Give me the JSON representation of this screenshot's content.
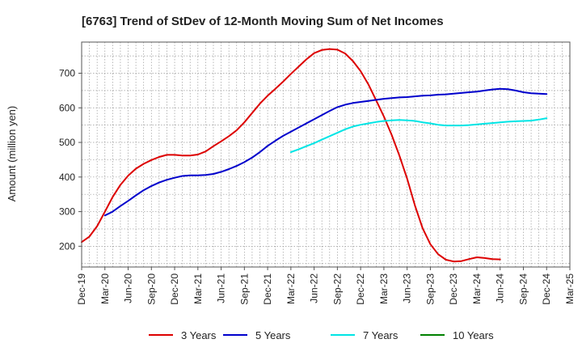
{
  "chart_data": {
    "type": "line",
    "title": "[6763]  Trend of StDev of 12-Month Moving Sum of Net Incomes",
    "ylabel": "Amount (million yen)",
    "xlabel": "",
    "ylim": [
      140,
      790
    ],
    "yticks": [
      200,
      300,
      400,
      500,
      600,
      700
    ],
    "x_tick_labels": [
      "Dec-19",
      "Mar-20",
      "Jun-20",
      "Sep-20",
      "Dec-20",
      "Mar-21",
      "Jun-21",
      "Sep-21",
      "Dec-21",
      "Mar-22",
      "Jun-22",
      "Sep-22",
      "Dec-22",
      "Mar-23",
      "Jun-23",
      "Sep-23",
      "Dec-23",
      "Mar-24",
      "Jun-24",
      "Sep-24",
      "Dec-24",
      "Mar-25"
    ],
    "grid": true,
    "legend_position": "bottom",
    "series": [
      {
        "name": "3 Years",
        "color": "#dd0000",
        "x": [
          "Dec-19",
          "Jan-20",
          "Feb-20",
          "Mar-20",
          "Apr-20",
          "May-20",
          "Jun-20",
          "Jul-20",
          "Aug-20",
          "Sep-20",
          "Oct-20",
          "Nov-20",
          "Dec-20",
          "Jan-21",
          "Feb-21",
          "Mar-21",
          "Apr-21",
          "May-21",
          "Jun-21",
          "Jul-21",
          "Aug-21",
          "Sep-21",
          "Oct-21",
          "Nov-21",
          "Dec-21",
          "Jan-22",
          "Feb-22",
          "Mar-22",
          "Apr-22",
          "May-22",
          "Jun-22",
          "Jul-22",
          "Aug-22",
          "Sep-22",
          "Oct-22",
          "Nov-22",
          "Dec-22",
          "Jan-23",
          "Feb-23",
          "Mar-23",
          "Apr-23",
          "May-23",
          "Jun-23",
          "Jul-23",
          "Aug-23",
          "Sep-23",
          "Oct-23",
          "Nov-23",
          "Dec-23",
          "Jan-24",
          "Feb-24",
          "Mar-24",
          "Apr-24",
          "May-24",
          "Jun-24",
          "Jul-24",
          "Aug-24",
          "Sep-24",
          "Oct-24",
          "Nov-24",
          "Dec-24"
        ],
        "values": [
          212,
          228,
          258,
          300,
          342,
          377,
          404,
          424,
          438,
          449,
          458,
          464,
          464,
          462,
          462,
          465,
          474,
          489,
          503,
          518,
          535,
          558,
          585,
          612,
          635,
          655,
          676,
          698,
          719,
          740,
          758,
          767,
          770,
          768,
          757,
          735,
          706,
          668,
          622,
          575,
          522,
          462,
          395,
          318,
          252,
          206,
          177,
          161,
          156,
          157,
          163,
          168,
          166,
          163,
          162,
          null,
          null,
          null,
          null,
          null,
          null
        ],
        "_comment": ""
      },
      {
        "name": "5 Years",
        "color": "#0000cc",
        "x": [
          "Mar-20",
          "Apr-20",
          "May-20",
          "Jun-20",
          "Jul-20",
          "Aug-20",
          "Sep-20",
          "Oct-20",
          "Nov-20",
          "Dec-20",
          "Jan-21",
          "Feb-21",
          "Mar-21",
          "Apr-21",
          "May-21",
          "Jun-21",
          "Jul-21",
          "Aug-21",
          "Sep-21",
          "Oct-21",
          "Nov-21",
          "Dec-21",
          "Jan-22",
          "Feb-22",
          "Mar-22",
          "Apr-22",
          "May-22",
          "Jun-22",
          "Jul-22",
          "Aug-22",
          "Sep-22",
          "Oct-22",
          "Nov-22",
          "Dec-22",
          "Jan-23",
          "Feb-23",
          "Mar-23",
          "Apr-23",
          "May-23",
          "Jun-23",
          "Jul-23",
          "Aug-23",
          "Sep-23",
          "Oct-23",
          "Nov-23",
          "Dec-23",
          "Jan-24",
          "Feb-24",
          "Mar-24",
          "Apr-24",
          "May-24",
          "Jun-24",
          "Jul-24",
          "Aug-24",
          "Sep-24",
          "Oct-24",
          "Nov-24",
          "Dec-24"
        ],
        "values": [
          289,
          300,
          316,
          331,
          347,
          362,
          374,
          384,
          392,
          398,
          403,
          405,
          405,
          406,
          409,
          415,
          423,
          432,
          443,
          456,
          472,
          490,
          505,
          519,
          531,
          543,
          555,
          567,
          579,
          591,
          602,
          609,
          614,
          617,
          620,
          623,
          626,
          628,
          630,
          631,
          633,
          635,
          636,
          638,
          639,
          641,
          643,
          645,
          647,
          650,
          653,
          655,
          654,
          650,
          645,
          642,
          641,
          640
        ]
      },
      {
        "name": "7 Years",
        "color": "#00e5e5",
        "x": [
          "Mar-22",
          "Apr-22",
          "May-22",
          "Jun-22",
          "Jul-22",
          "Aug-22",
          "Sep-22",
          "Oct-22",
          "Nov-22",
          "Dec-22",
          "Jan-23",
          "Feb-23",
          "Mar-23",
          "Apr-23",
          "May-23",
          "Jun-23",
          "Jul-23",
          "Aug-23",
          "Sep-23",
          "Oct-23",
          "Nov-23",
          "Dec-23",
          "Jan-24",
          "Feb-24",
          "Mar-24",
          "Apr-24",
          "May-24",
          "Jun-24",
          "Jul-24",
          "Aug-24",
          "Sep-24",
          "Oct-24",
          "Nov-24",
          "Dec-24"
        ],
        "values": [
          472,
          480,
          489,
          498,
          508,
          518,
          528,
          538,
          546,
          551,
          555,
          559,
          562,
          564,
          565,
          564,
          562,
          558,
          555,
          551,
          549,
          549,
          549,
          550,
          552,
          554,
          556,
          558,
          560,
          561,
          562,
          563,
          566,
          570
        ]
      },
      {
        "name": "10 Years",
        "color": "#008000",
        "x": [],
        "values": []
      }
    ]
  }
}
